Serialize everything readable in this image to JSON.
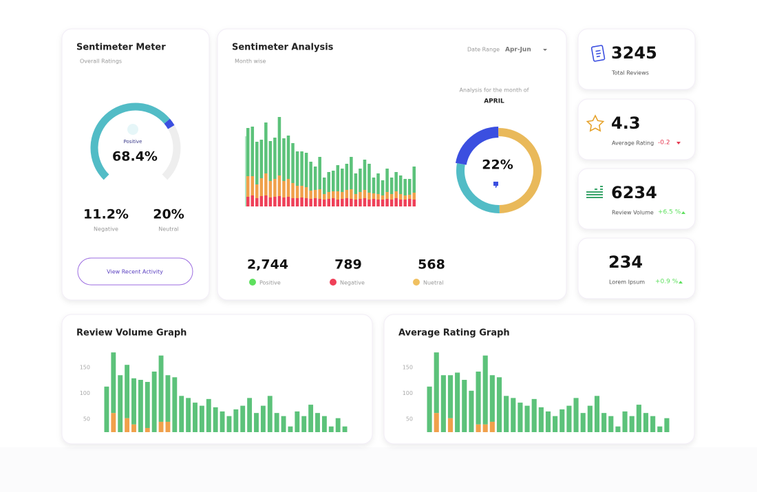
{
  "sentiment_meter": {
    "title": "Sentimeter Meter",
    "subtitle": "Overall Ratings",
    "gauge": {
      "type": "gauge",
      "value": 68.4,
      "value_label": "68.4%",
      "label": "Positive",
      "color": "#52bcc6"
    },
    "negative": {
      "value": "11.2%",
      "label": "Negative"
    },
    "neutral": {
      "value": "20%",
      "label": "Neutral"
    },
    "button": "View Recent Activity"
  },
  "sentiment_analysis": {
    "title": "Sentimeter Analysis",
    "subtitle": "Month wise",
    "date_range_label": "Date Range",
    "date_range": "Apr-Jun",
    "bar_chart": {
      "type": "bar",
      "stacked": true,
      "ylim": [
        0,
        130
      ],
      "series": [
        {
          "color": "#ef4058",
          "values": [
            14,
            16,
            12,
            15,
            16,
            13,
            14,
            15,
            13,
            14,
            12,
            12,
            13,
            12,
            11,
            12,
            11,
            10,
            11,
            12,
            10,
            11,
            12,
            11,
            10,
            11,
            12,
            10,
            11,
            10,
            10,
            11,
            10,
            12,
            10,
            10,
            11,
            10
          ]
        },
        {
          "color": "#f0a04b",
          "values": [
            30,
            28,
            20,
            26,
            32,
            24,
            26,
            30,
            24,
            26,
            22,
            18,
            17,
            16,
            12,
            12,
            14,
            8,
            10,
            10,
            12,
            10,
            12,
            14,
            8,
            10,
            12,
            10,
            8,
            8,
            6,
            10,
            8,
            10,
            8,
            6,
            6,
            10
          ]
        },
        {
          "color": "#5cc27a",
          "values": [
            70,
            72,
            62,
            56,
            74,
            58,
            60,
            85,
            62,
            63,
            58,
            50,
            50,
            50,
            42,
            34,
            47,
            24,
            29,
            30,
            38,
            34,
            38,
            47,
            30,
            34,
            44,
            42,
            23,
            30,
            22,
            34,
            24,
            28,
            27,
            24,
            23,
            38
          ]
        }
      ]
    },
    "donut": {
      "type": "donut",
      "caption": "Analysis for the month of",
      "month": "APRIL",
      "center_label": "22%",
      "values": [
        22,
        50,
        28
      ],
      "colors": [
        "#3b4fe0",
        "#e9b95a",
        "#52bcc6"
      ]
    },
    "totals": [
      {
        "value": "2,744",
        "label": "Positive",
        "color": "#5ee05e"
      },
      {
        "value": "789",
        "label": "Negative",
        "color": "#ef4058"
      },
      {
        "value": "568",
        "label": "Nuetral",
        "color": "#f0c060"
      }
    ]
  },
  "stats": [
    {
      "value": "3245",
      "label": "Total Reviews"
    },
    {
      "value": "4.3",
      "label": "Average Rating",
      "change": "-0.2",
      "change_color": "#e53950"
    },
    {
      "value": "6234",
      "label": "Review Volume",
      "change": "+6.5 %",
      "change_color": "#5ee05e"
    },
    {
      "value": "234",
      "label": "Lorem Ipsum",
      "change": "+0.9 %",
      "change_color": "#5ee05e"
    }
  ],
  "review_volume": {
    "title": "Review Volume Graph",
    "chart": {
      "type": "bar",
      "stacked": true,
      "ylim": [
        25,
        180
      ],
      "yticks": [
        50,
        100,
        150
      ],
      "series": [
        {
          "color": "#f0a04b",
          "values": [
            0,
            62,
            0,
            52,
            40,
            0,
            33,
            0,
            45,
            45,
            0,
            0,
            0,
            0,
            0,
            0,
            0,
            0,
            0,
            0,
            0,
            0,
            0,
            0,
            0,
            0,
            0,
            0,
            0,
            0,
            0,
            0,
            0,
            0,
            0,
            0
          ]
        },
        {
          "color": "#5cc27a",
          "values": [
            113,
            117,
            135,
            103,
            89,
            126,
            89,
            142,
            128,
            90,
            131,
            95,
            91,
            82,
            76,
            89,
            73,
            65,
            56,
            69,
            76,
            91,
            62,
            76,
            95,
            62,
            56,
            36,
            65,
            56,
            78,
            62,
            56,
            36,
            52,
            36
          ]
        }
      ]
    }
  },
  "average_rating": {
    "title": "Average Rating Graph",
    "chart": {
      "type": "bar",
      "stacked": true,
      "ylim": [
        25,
        180
      ],
      "yticks": [
        50,
        100,
        150
      ],
      "series": [
        {
          "color": "#f0a04b",
          "values": [
            0,
            62,
            0,
            52,
            0,
            0,
            0,
            40,
            40,
            45,
            0,
            0,
            0,
            0,
            0,
            0,
            0,
            0,
            0,
            0,
            0,
            0,
            0,
            0,
            0,
            0,
            0,
            0,
            0,
            0,
            0,
            0,
            0,
            0,
            0
          ]
        },
        {
          "color": "#5cc27a",
          "values": [
            113,
            117,
            135,
            83,
            140,
            126,
            105,
            102,
            133,
            90,
            131,
            95,
            91,
            82,
            76,
            89,
            73,
            65,
            56,
            69,
            76,
            91,
            62,
            76,
            95,
            62,
            56,
            36,
            65,
            56,
            78,
            62,
            56,
            36,
            52
          ]
        }
      ]
    }
  }
}
